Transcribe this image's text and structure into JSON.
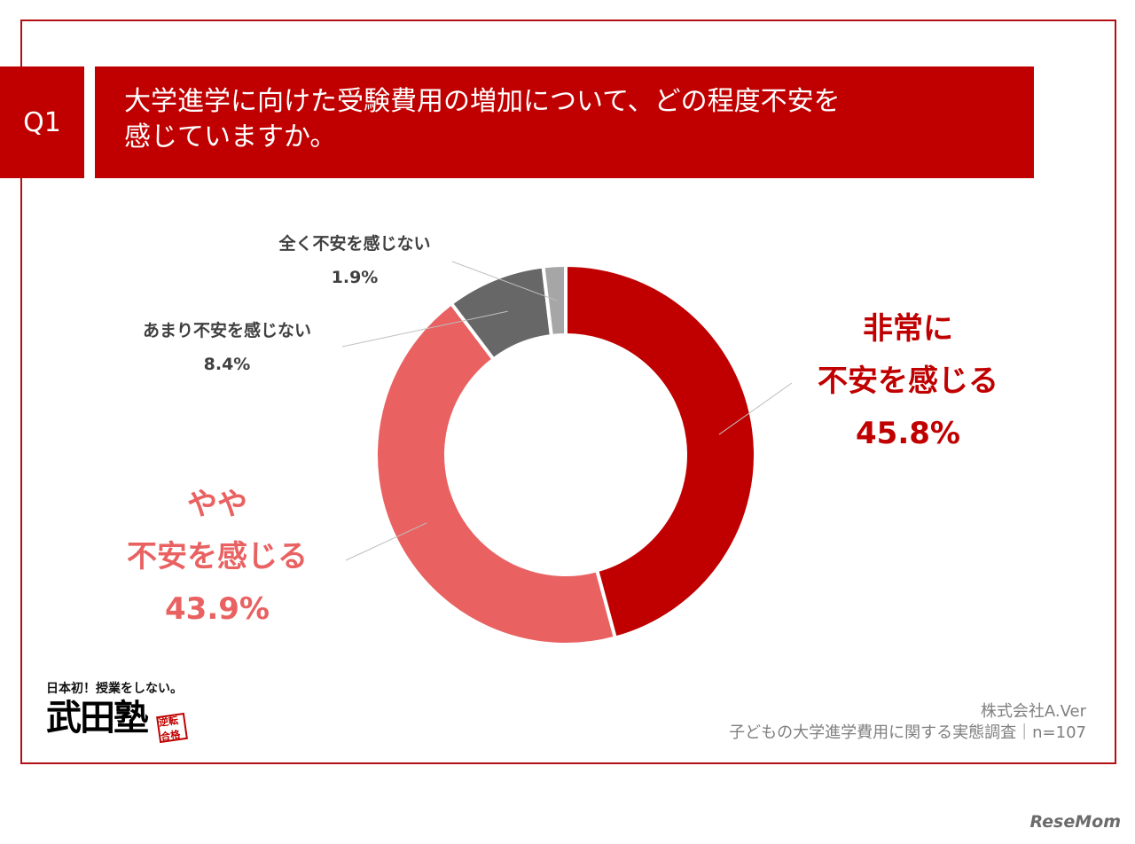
{
  "header": {
    "q_label": "Q1",
    "title_line1": "大学進学に向けた受験費用の増加について、どの程度不安を",
    "title_line2": "感じていますか。"
  },
  "chart_data": {
    "type": "pie",
    "donut": true,
    "categories": [
      "非常に不安を感じる",
      "やや不安を感じる",
      "あまり不安を感じない",
      "全く不安を感じない"
    ],
    "values": [
      45.8,
      43.9,
      8.4,
      1.9
    ],
    "unit": "%",
    "colors": [
      "#c00000",
      "#e96161",
      "#676767",
      "#a6a6a6"
    ]
  },
  "labels": {
    "very": {
      "line1": "非常に",
      "line2": "不安を感じる",
      "pct": "45.8%"
    },
    "somewhat": {
      "line1": "やや",
      "line2": "不安を感じる",
      "pct": "43.9%"
    },
    "little": {
      "name": "あまり不安を感じない",
      "pct": "8.4%"
    },
    "none": {
      "name": "全く不安を感じない",
      "pct": "1.9%"
    }
  },
  "logo": {
    "tagline": "日本初！授業をしない。",
    "name": "武田塾",
    "stamp": "逆転合格"
  },
  "source": {
    "company": "株式会社A.Ver",
    "survey": "子どもの大学進学費用に関する実態調査｜n=107"
  },
  "watermark": "ReseMom"
}
